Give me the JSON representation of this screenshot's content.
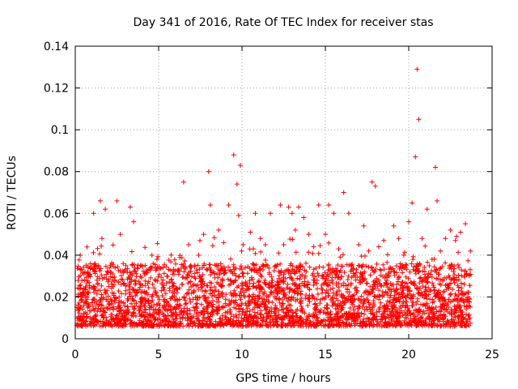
{
  "chart_data": {
    "type": "scatter",
    "title": "Day 341 of 2016, Rate Of TEC Index for receiver stas",
    "xlabel": "GPS time / hours",
    "ylabel": "ROTI / TECUs",
    "xlim": [
      0,
      25
    ],
    "ylim": [
      0,
      0.14
    ],
    "xticks": [
      0,
      5,
      10,
      15,
      20,
      25
    ],
    "xtick_labels": [
      "0",
      "5",
      "10",
      "15",
      "20",
      "25"
    ],
    "yticks": [
      0,
      0.02,
      0.04,
      0.06,
      0.08,
      0.1,
      0.12,
      0.14
    ],
    "ytick_labels": [
      "0",
      "0.02",
      "0.04",
      "0.06",
      "0.08",
      "0.1",
      "0.12",
      "0.14"
    ],
    "grid": true,
    "marker": "+",
    "color": "#ff0000",
    "series": [
      {
        "name": "ROTI",
        "x": [
          0.1,
          0.3,
          0.5,
          0.8,
          1.1,
          1.3,
          1.5,
          1.6,
          1.8,
          2.0,
          2.2,
          2.5,
          2.7,
          3.0,
          3.3,
          3.5,
          3.7,
          4.0,
          4.3,
          4.6,
          4.9,
          5.2,
          5.5,
          5.8,
          6.1,
          6.4,
          6.5,
          6.8,
          7.1,
          7.4,
          7.7,
          8.0,
          8.1,
          8.3,
          8.6,
          8.9,
          9.2,
          9.5,
          9.7,
          9.8,
          9.9,
          10.2,
          10.5,
          10.8,
          11.1,
          11.4,
          11.7,
          12.0,
          12.3,
          12.5,
          12.8,
          13.0,
          13.2,
          13.4,
          13.7,
          14.0,
          14.3,
          14.6,
          15.0,
          15.2,
          15.5,
          15.8,
          16.1,
          16.4,
          16.7,
          17.0,
          17.3,
          17.6,
          17.8,
          18.0,
          18.2,
          18.5,
          18.8,
          19.1,
          19.4,
          19.7,
          20.0,
          20.2,
          20.4,
          20.5,
          20.6,
          20.8,
          21.1,
          21.4,
          21.6,
          21.7,
          21.9,
          22.2,
          22.5,
          22.8,
          23.1,
          23.4,
          23.7
        ],
        "y": [
          0.015,
          0.04,
          0.022,
          0.03,
          0.06,
          0.028,
          0.066,
          0.048,
          0.062,
          0.025,
          0.018,
          0.066,
          0.05,
          0.033,
          0.063,
          0.056,
          0.023,
          0.017,
          0.022,
          0.04,
          0.038,
          0.026,
          0.018,
          0.02,
          0.022,
          0.026,
          0.075,
          0.045,
          0.023,
          0.04,
          0.05,
          0.08,
          0.064,
          0.032,
          0.052,
          0.046,
          0.064,
          0.088,
          0.074,
          0.059,
          0.083,
          0.026,
          0.051,
          0.06,
          0.048,
          0.045,
          0.06,
          0.035,
          0.064,
          0.045,
          0.063,
          0.06,
          0.052,
          0.063,
          0.058,
          0.05,
          0.044,
          0.064,
          0.05,
          0.064,
          0.06,
          0.043,
          0.07,
          0.06,
          0.03,
          0.045,
          0.054,
          0.042,
          0.075,
          0.073,
          0.044,
          0.047,
          0.03,
          0.054,
          0.048,
          0.04,
          0.056,
          0.065,
          0.087,
          0.129,
          0.105,
          0.048,
          0.062,
          0.038,
          0.082,
          0.066,
          0.042,
          0.048,
          0.052,
          0.047,
          0.051,
          0.055,
          0.042
        ]
      }
    ]
  }
}
